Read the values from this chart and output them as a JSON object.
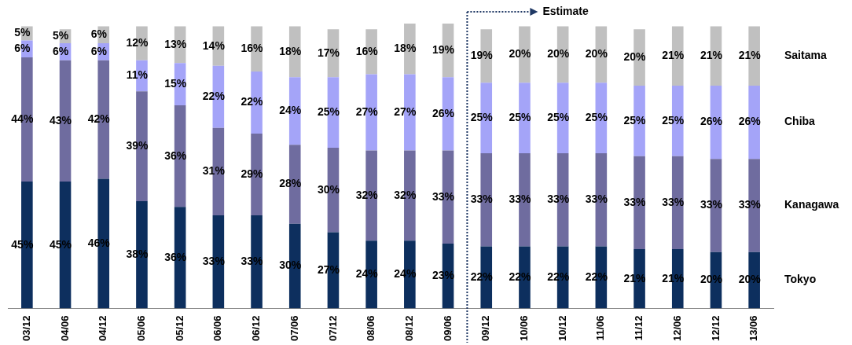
{
  "chart_data": {
    "type": "bar",
    "stacked": true,
    "categories": [
      "03/12",
      "04/06",
      "04/12",
      "05/06",
      "05/12",
      "06/06",
      "06/12",
      "07/06",
      "07/12",
      "08/06",
      "08/12",
      "09/06",
      "09/12",
      "10/06",
      "10/12",
      "11/06",
      "11/12",
      "12/06",
      "12/12",
      "13/06"
    ],
    "series": [
      {
        "name": "Tokyo",
        "color": "#0d2f5e",
        "values": [
          45,
          45,
          46,
          38,
          36,
          33,
          33,
          30,
          27,
          24,
          24,
          23,
          22,
          22,
          22,
          22,
          21,
          21,
          20,
          20
        ],
        "value_labels": [
          "45%",
          "45%",
          "46%",
          "38%",
          "36%",
          "33%",
          "33%",
          "30%",
          "27%",
          "24%",
          "24%",
          "23%",
          "22%",
          "22%",
          "22%",
          "22%",
          "21%",
          "21%",
          "20%",
          "20%"
        ]
      },
      {
        "name": "Kanagawa",
        "color": "#6f6c9f",
        "values": [
          44,
          43,
          42,
          39,
          36,
          31,
          29,
          28,
          30,
          32,
          32,
          33,
          33,
          33,
          33,
          33,
          33,
          33,
          33,
          33
        ],
        "value_labels": [
          "44%",
          "43%",
          "42%",
          "39%",
          "36%",
          "31%",
          "29%",
          "28%",
          "30%",
          "32%",
          "32%",
          "33%",
          "33%",
          "33%",
          "33%",
          "33%",
          "33%",
          "33%",
          "33%",
          "33%"
        ]
      },
      {
        "name": "Chiba",
        "color": "#a4a4f8",
        "values": [
          6,
          6,
          6,
          11,
          15,
          22,
          22,
          24,
          25,
          27,
          27,
          26,
          25,
          25,
          25,
          25,
          25,
          25,
          26,
          26
        ],
        "value_labels": [
          "6%",
          "6%",
          "6%",
          "11%",
          "15%",
          "22%",
          "22%",
          "24%",
          "25%",
          "27%",
          "27%",
          "26%",
          "25%",
          "25%",
          "25%",
          "25%",
          "25%",
          "25%",
          "26%",
          "26%"
        ]
      },
      {
        "name": "Saitama",
        "color": "#c0c0c0",
        "values": [
          5,
          5,
          6,
          12,
          13,
          14,
          16,
          18,
          17,
          16,
          18,
          19,
          19,
          20,
          20,
          20,
          20,
          21,
          21,
          21
        ],
        "value_labels": [
          "5%",
          "5%",
          "6%",
          "12%",
          "13%",
          "14%",
          "16%",
          "18%",
          "17%",
          "16%",
          "18%",
          "19%",
          "19%",
          "20%",
          "20%",
          "20%",
          "20%",
          "21%",
          "21%",
          "21%"
        ]
      }
    ],
    "ref_lines": [
      {
        "axis": "x",
        "value": "09/12",
        "label": "Estimate",
        "color": "#1f3864",
        "line_style": "dotted"
      }
    ],
    "grid": false
  }
}
